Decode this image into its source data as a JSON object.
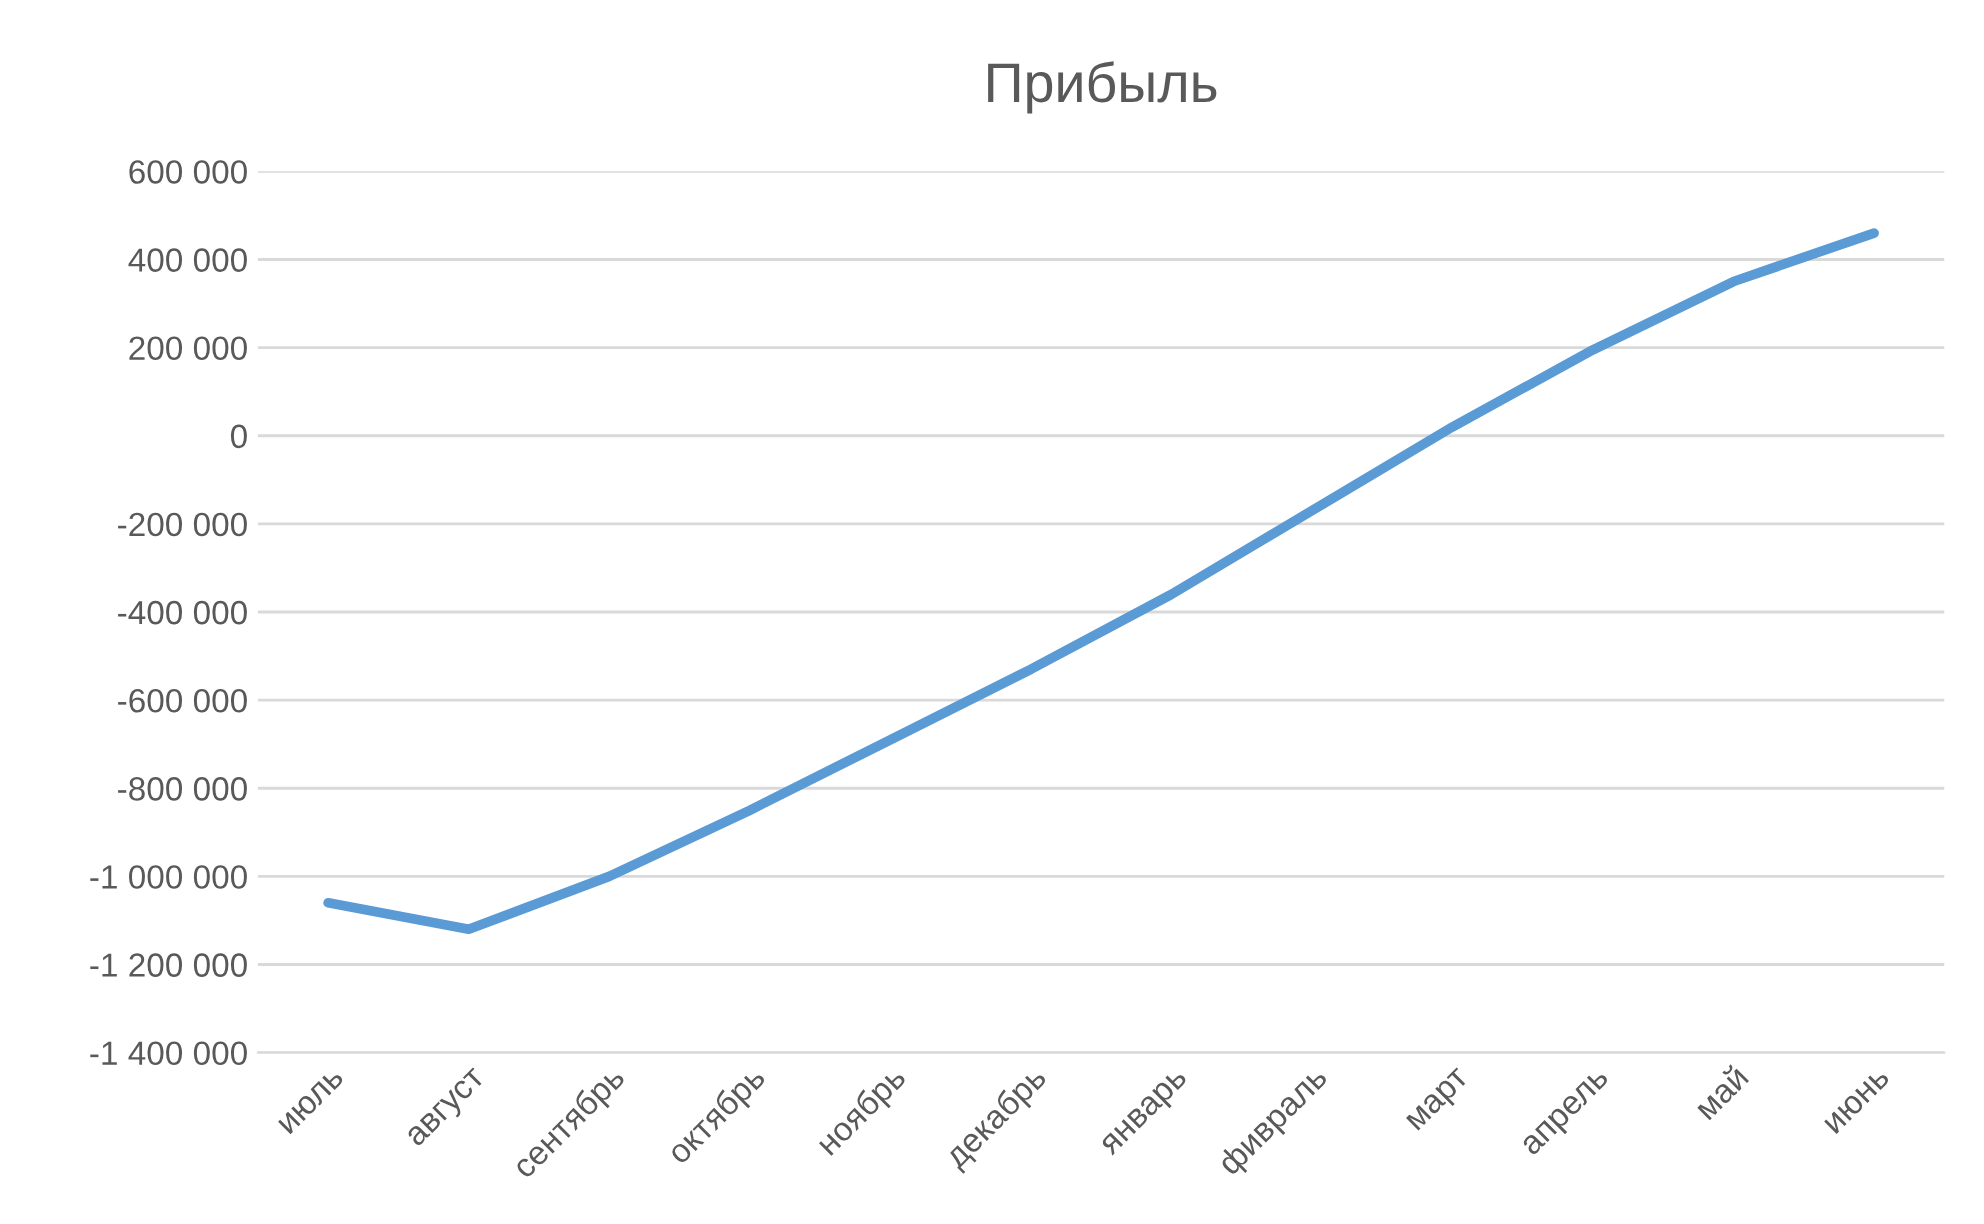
{
  "chart_data": {
    "type": "line",
    "title": "Прибыль",
    "categories": [
      "июль",
      "август",
      "сентябрь",
      "октябрь",
      "ноябрь",
      "декабрь",
      "январь",
      "фивраль",
      "март",
      "апрель",
      "май",
      "июнь"
    ],
    "series": [
      {
        "color": "#5b9bd5",
        "values": [
          -1060000,
          -1120000,
          -1000000,
          -850000,
          -690000,
          -530000,
          -360000,
          -170000,
          20000,
          195000,
          350000,
          460000
        ]
      }
    ],
    "ylim": [
      -1400000,
      600000
    ],
    "yticks": [
      {
        "value": -1400000,
        "label": "-1 400 000"
      },
      {
        "value": -1200000,
        "label": "-1 200 000"
      },
      {
        "value": -1000000,
        "label": "-1 000 000"
      },
      {
        "value": -800000,
        "label": "-800 000"
      },
      {
        "value": -600000,
        "label": "-600 000"
      },
      {
        "value": -400000,
        "label": "-400 000"
      },
      {
        "value": -200000,
        "label": "-200 000"
      },
      0,
      {
        "value": 200000,
        "label": "200 000"
      },
      {
        "value": 400000,
        "label": "400 000"
      },
      {
        "value": 600000,
        "label": "600 000"
      }
    ],
    "grid": "y",
    "line_style": "solid",
    "marker": "none"
  }
}
